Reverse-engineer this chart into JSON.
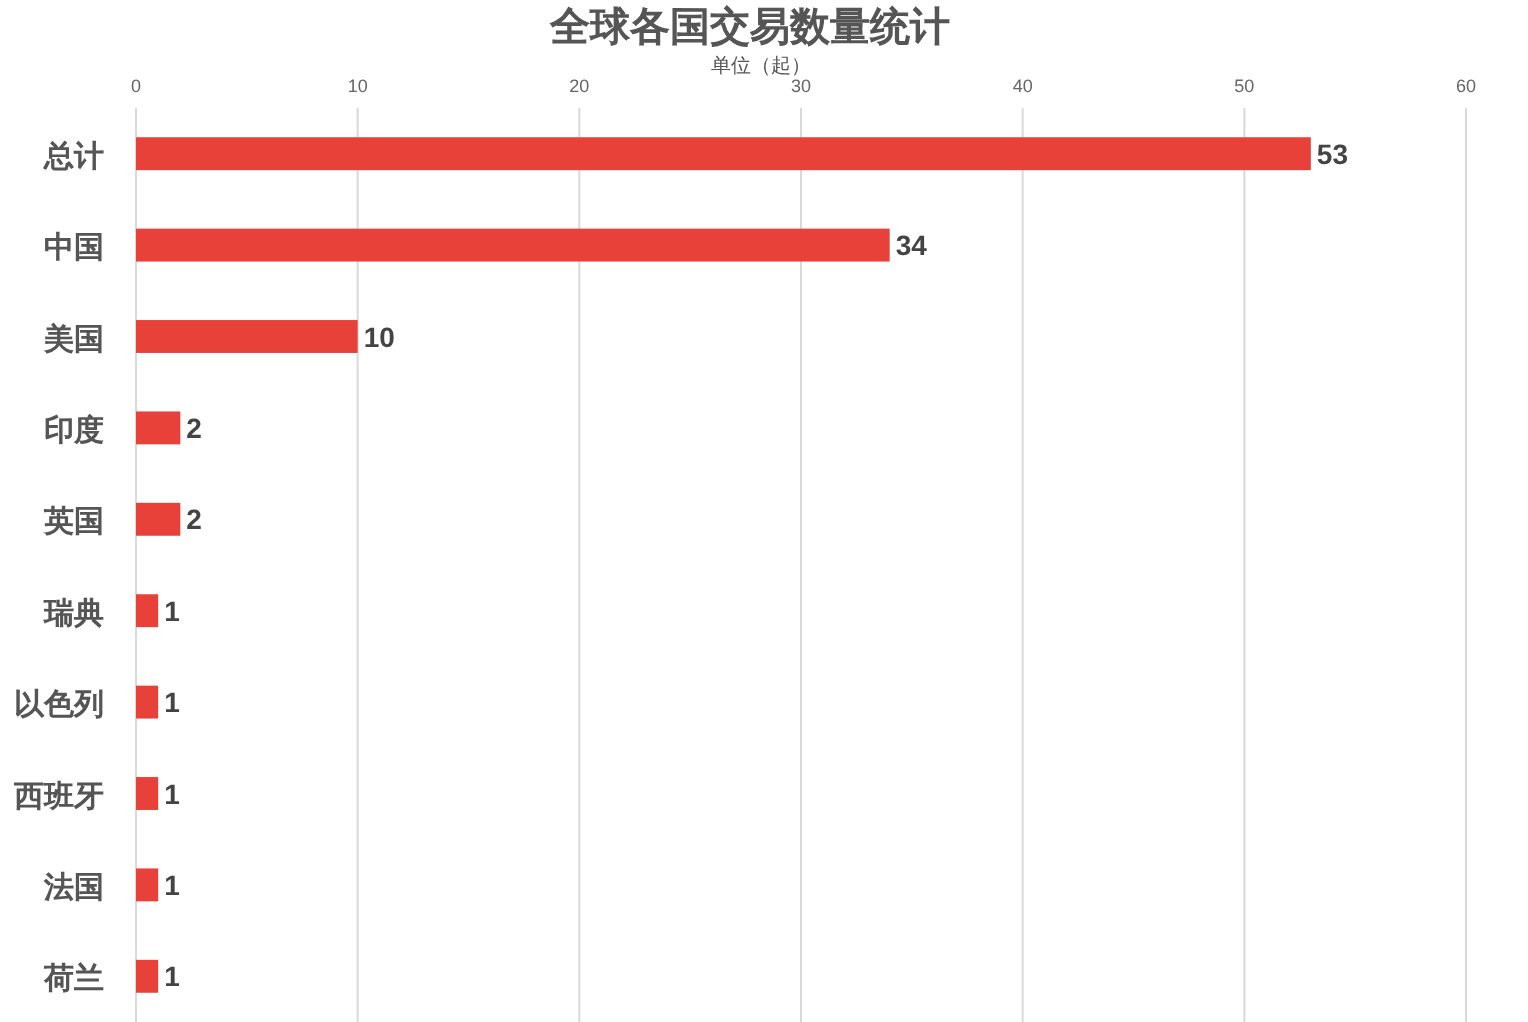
{
  "chart_data": {
    "type": "bar",
    "orientation": "horizontal",
    "title": "全球各国交易数量统计",
    "xlabel": "单位（起）",
    "categories": [
      "总计",
      "中国",
      "美国",
      "印度",
      "英国",
      "瑞典",
      "以色列",
      "西班牙",
      "法国",
      "荷兰"
    ],
    "values": [
      53,
      34,
      10,
      2,
      2,
      1,
      1,
      1,
      1,
      1
    ],
    "color": "#e8413a",
    "xlim": [
      0,
      60
    ],
    "xticks": [
      0,
      10,
      20,
      30,
      40,
      50,
      60
    ],
    "grid": "x",
    "data_labels": true
  }
}
